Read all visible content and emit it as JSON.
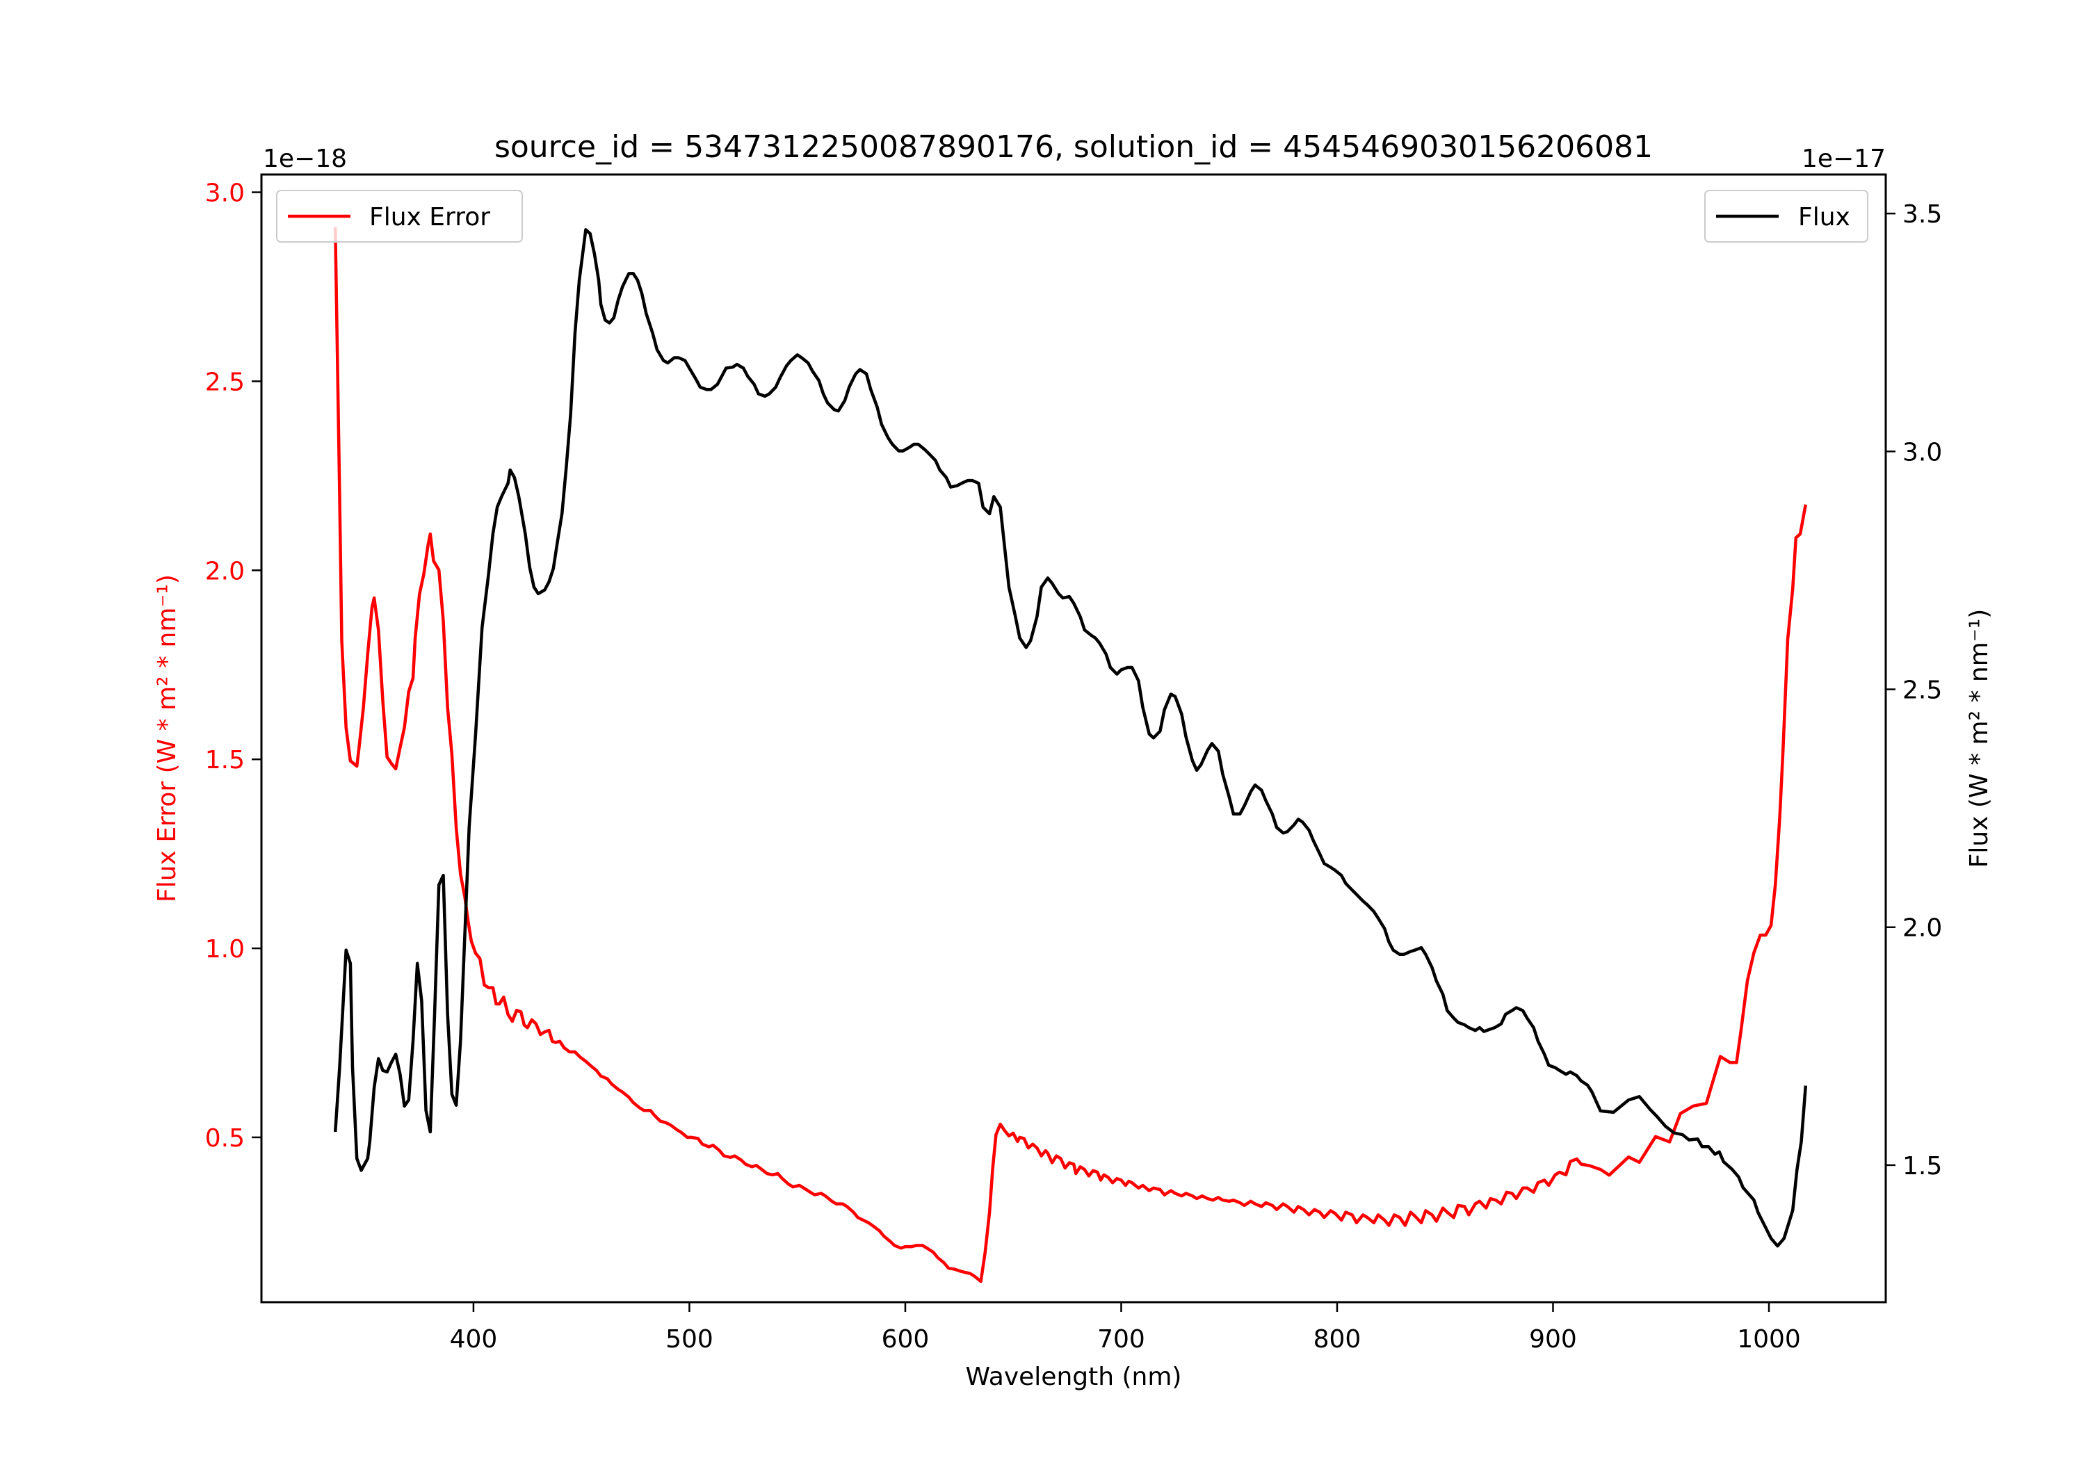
{
  "chart_data": {
    "type": "line",
    "title": "source_id = 5347312250087890176, solution_id = 4545469030156206081",
    "xlabel": "Wavelength (nm)",
    "ylabel_left": "Flux Error (W * m² * nm⁻¹)",
    "ylabel_right": "Flux (W * m² * nm⁻¹)",
    "offset_left": "1e−18",
    "offset_right": "1e−17",
    "xlim": [
      301.8,
      1054.1
    ],
    "ylim_left": [
      0.064,
      3.047
    ],
    "ylim_right": [
      1.212,
      3.582
    ],
    "xticks": [
      400,
      500,
      600,
      700,
      800,
      900,
      1000
    ],
    "xtick_labels": [
      "400",
      "500",
      "600",
      "700",
      "800",
      "900",
      "1000"
    ],
    "yticks_left": [
      0.5,
      1.0,
      1.5,
      2.0,
      2.5,
      3.0
    ],
    "ytick_labels_left": [
      "0.5",
      "1.0",
      "1.5",
      "2.0",
      "2.5",
      "3.0"
    ],
    "yticks_right": [
      1.5,
      2.0,
      2.5,
      3.0,
      3.5
    ],
    "ytick_labels_right": [
      "1.5",
      "2.0",
      "2.5",
      "3.0",
      "3.5"
    ],
    "grid": false,
    "legend_left": {
      "label": "Flux Error",
      "placement": "upper-left"
    },
    "legend_right": {
      "label": "Flux",
      "placement": "upper-right"
    },
    "colors": {
      "flux_error": "#ff0000",
      "flux": "#000000",
      "left_axis": "#ff0000"
    },
    "series": [
      {
        "name": "Flux Error",
        "axis": "left",
        "unit_scale": "1e-18",
        "x": [
          336,
          338,
          339,
          341,
          343,
          346,
          347,
          349,
          351,
          353,
          354,
          356,
          358,
          360,
          362,
          364,
          366,
          368,
          370,
          372,
          373,
          375,
          377,
          379,
          380,
          381.5,
          384,
          386,
          388,
          390,
          392,
          394,
          396,
          397.5,
          399,
          401,
          403,
          405,
          407,
          409,
          410.5,
          412,
          414,
          416,
          418,
          420,
          422,
          423.5,
          425,
          427,
          429,
          431,
          433,
          435,
          436.5,
          438,
          440,
          442,
          444.5,
          447,
          449.5,
          452,
          454,
          457,
          459,
          462,
          464,
          467,
          469,
          472,
          474,
          477,
          479,
          482,
          484,
          486.5,
          489,
          491.5,
          494,
          496,
          499,
          501,
          504,
          506,
          509,
          511,
          514,
          516,
          519,
          521,
          524,
          526,
          529,
          531,
          533.5,
          536,
          538.5,
          541,
          543,
          546,
          548,
          551,
          553,
          556,
          558,
          561,
          563,
          566,
          568,
          571,
          573,
          576,
          578,
          580.5,
          583,
          585.5,
          588,
          590,
          593,
          595,
          598,
          600,
          603,
          605,
          608,
          610,
          613,
          615,
          618,
          620,
          623,
          625,
          627.5,
          630,
          632,
          635,
          637,
          639,
          640.5,
          642,
          644,
          646,
          648,
          650,
          652,
          653,
          655,
          657,
          659,
          661,
          663,
          665,
          666,
          668,
          670,
          672,
          674,
          676,
          678,
          679,
          681,
          683,
          685,
          687,
          689,
          690.5,
          692,
          694,
          696,
          698,
          700,
          702,
          703.5,
          705,
          708,
          710,
          713,
          715,
          718,
          720,
          723,
          725,
          728,
          730,
          733,
          735,
          737.5,
          740,
          742.5,
          745,
          747,
          750,
          752,
          755,
          757,
          760,
          762,
          765,
          767,
          770,
          772,
          775,
          777,
          780,
          782,
          784.5,
          787,
          789.5,
          792,
          794,
          797,
          799,
          802,
          804,
          807,
          809,
          812,
          814,
          817,
          819,
          822,
          824,
          826.5,
          829,
          831.5,
          834,
          836,
          839,
          841,
          844,
          846,
          849,
          851,
          854,
          856,
          859,
          861,
          864,
          866,
          869,
          871,
          873.5,
          876,
          878.5,
          881,
          883,
          886,
          888,
          891,
          893,
          896,
          898,
          901,
          903,
          906,
          908,
          911,
          913,
          917,
          922,
          926,
          935,
          940,
          947.5,
          954,
          959,
          965,
          971,
          977.5,
          982,
          985,
          987,
          990,
          993,
          996,
          998.5,
          1001,
          1003,
          1005,
          1006.5,
          1008.7,
          1011,
          1012.5,
          1014.5,
          1017
        ],
        "y": [
          2.908,
          2.202,
          1.814,
          1.584,
          1.496,
          1.482,
          1.531,
          1.637,
          1.778,
          1.902,
          1.927,
          1.842,
          1.655,
          1.506,
          1.489,
          1.475,
          1.531,
          1.584,
          1.679,
          1.715,
          1.821,
          1.937,
          1.99,
          2.068,
          2.096,
          2.025,
          2.001,
          1.867,
          1.637,
          1.513,
          1.319,
          1.196,
          1.136,
          1.072,
          1.019,
          0.987,
          0.973,
          0.903,
          0.896,
          0.896,
          0.853,
          0.853,
          0.871,
          0.825,
          0.807,
          0.836,
          0.832,
          0.797,
          0.79,
          0.811,
          0.8,
          0.772,
          0.779,
          0.783,
          0.754,
          0.751,
          0.754,
          0.737,
          0.726,
          0.726,
          0.712,
          0.701,
          0.691,
          0.677,
          0.662,
          0.655,
          0.641,
          0.627,
          0.62,
          0.606,
          0.592,
          0.578,
          0.571,
          0.571,
          0.557,
          0.543,
          0.539,
          0.532,
          0.521,
          0.514,
          0.5,
          0.5,
          0.497,
          0.482,
          0.475,
          0.479,
          0.465,
          0.451,
          0.447,
          0.451,
          0.44,
          0.429,
          0.422,
          0.426,
          0.415,
          0.404,
          0.401,
          0.404,
          0.391,
          0.376,
          0.369,
          0.373,
          0.366,
          0.355,
          0.348,
          0.352,
          0.345,
          0.331,
          0.324,
          0.324,
          0.317,
          0.302,
          0.288,
          0.281,
          0.274,
          0.264,
          0.253,
          0.239,
          0.225,
          0.214,
          0.207,
          0.211,
          0.211,
          0.214,
          0.214,
          0.207,
          0.196,
          0.182,
          0.168,
          0.154,
          0.151,
          0.147,
          0.143,
          0.14,
          0.133,
          0.119,
          0.196,
          0.302,
          0.419,
          0.507,
          0.535,
          0.518,
          0.504,
          0.511,
          0.489,
          0.5,
          0.497,
          0.472,
          0.482,
          0.472,
          0.451,
          0.465,
          0.458,
          0.433,
          0.451,
          0.444,
          0.419,
          0.433,
          0.429,
          0.404,
          0.422,
          0.415,
          0.398,
          0.412,
          0.408,
          0.387,
          0.401,
          0.394,
          0.38,
          0.391,
          0.387,
          0.373,
          0.384,
          0.38,
          0.366,
          0.373,
          0.359,
          0.366,
          0.362,
          0.348,
          0.359,
          0.352,
          0.345,
          0.352,
          0.345,
          0.338,
          0.345,
          0.338,
          0.334,
          0.341,
          0.334,
          0.331,
          0.334,
          0.327,
          0.32,
          0.331,
          0.324,
          0.317,
          0.327,
          0.32,
          0.309,
          0.324,
          0.317,
          0.302,
          0.317,
          0.309,
          0.295,
          0.309,
          0.302,
          0.288,
          0.306,
          0.299,
          0.281,
          0.302,
          0.295,
          0.274,
          0.295,
          0.288,
          0.274,
          0.295,
          0.281,
          0.267,
          0.295,
          0.288,
          0.267,
          0.302,
          0.292,
          0.274,
          0.306,
          0.295,
          0.278,
          0.313,
          0.302,
          0.288,
          0.32,
          0.317,
          0.295,
          0.324,
          0.331,
          0.313,
          0.338,
          0.334,
          0.324,
          0.355,
          0.352,
          0.338,
          0.366,
          0.366,
          0.355,
          0.38,
          0.387,
          0.373,
          0.401,
          0.408,
          0.401,
          0.436,
          0.443,
          0.429,
          0.425,
          0.415,
          0.4,
          0.448,
          0.434,
          0.502,
          0.488,
          0.563,
          0.583,
          0.59,
          0.714,
          0.698,
          0.698,
          0.779,
          0.914,
          0.988,
          1.035,
          1.035,
          1.061,
          1.17,
          1.345,
          1.521,
          1.817,
          1.951,
          2.086,
          2.096,
          2.174
        ]
      },
      {
        "name": "Flux",
        "axis": "right",
        "unit_scale": "1e-17",
        "x": [
          336,
          338,
          341,
          343,
          344,
          346,
          348,
          351,
          352,
          354,
          356,
          358,
          360,
          362,
          364,
          366,
          368,
          370,
          372,
          374,
          376,
          378,
          380,
          382,
          384,
          386,
          388,
          390,
          392,
          394,
          396,
          398,
          401,
          404,
          407,
          409,
          411,
          413,
          416,
          417,
          419,
          421,
          424,
          426,
          428,
          430,
          433,
          435,
          437,
          439,
          441,
          443,
          445,
          447,
          449,
          451,
          452,
          454,
          456,
          458,
          459,
          461,
          463,
          465,
          467,
          469,
          471,
          472,
          474,
          476,
          478,
          480,
          483,
          485,
          488,
          490,
          493,
          495,
          498,
          500,
          503,
          505,
          508,
          510,
          513,
          515,
          517,
          520,
          522,
          525,
          527,
          530,
          532,
          535,
          537,
          540,
          542,
          545,
          547,
          550,
          552,
          555,
          557,
          560,
          562,
          564,
          567,
          569,
          572,
          574,
          577,
          579,
          582,
          584,
          587,
          589,
          592,
          594,
          597,
          599,
          602,
          604,
          606,
          609,
          611,
          614,
          616,
          619,
          621,
          624,
          626,
          629,
          631,
          634,
          636,
          639,
          641,
          644,
          646,
          648,
          651,
          653,
          656,
          658,
          661,
          663,
          666,
          668,
          671,
          673,
          676,
          678,
          681,
          683,
          686,
          688,
          690,
          693,
          695,
          698,
          700,
          703,
          705,
          708,
          710,
          713,
          715,
          718,
          720,
          723,
          725,
          728,
          730,
          733,
          735,
          737,
          740,
          742,
          745,
          747,
          750,
          752,
          755,
          757,
          760,
          762,
          765,
          767,
          770,
          772,
          775,
          777,
          780,
          782,
          784,
          787,
          789,
          792,
          794,
          797,
          799,
          802,
          804,
          807,
          809,
          812,
          814,
          817,
          819,
          822,
          824,
          826,
          829,
          831,
          834,
          836,
          839,
          841,
          844,
          846,
          849,
          851,
          854,
          856,
          859,
          861,
          864,
          866,
          868,
          871,
          873,
          876,
          878,
          881,
          883,
          886,
          888,
          891,
          893,
          896,
          898,
          901,
          903,
          906,
          908,
          911,
          913,
          916,
          918,
          922,
          928,
          935,
          940,
          945,
          948,
          952,
          956,
          960,
          963,
          967,
          969,
          972,
          975,
          977,
          979,
          983,
          986,
          988,
          993,
          995,
          998,
          1001,
          1004,
          1007,
          1011,
          1013,
          1015,
          1017
        ],
        "y": [
          1.57,
          1.705,
          1.952,
          1.924,
          1.705,
          1.514,
          1.489,
          1.514,
          1.551,
          1.663,
          1.724,
          1.699,
          1.696,
          1.716,
          1.733,
          1.691,
          1.624,
          1.637,
          1.761,
          1.924,
          1.845,
          1.615,
          1.57,
          1.817,
          2.089,
          2.109,
          1.817,
          1.649,
          1.626,
          1.761,
          1.985,
          2.21,
          2.406,
          2.63,
          2.743,
          2.827,
          2.883,
          2.905,
          2.933,
          2.961,
          2.945,
          2.905,
          2.827,
          2.757,
          2.715,
          2.701,
          2.709,
          2.726,
          2.754,
          2.813,
          2.869,
          2.967,
          3.079,
          3.248,
          3.36,
          3.43,
          3.466,
          3.458,
          3.416,
          3.36,
          3.309,
          3.276,
          3.27,
          3.281,
          3.318,
          3.346,
          3.365,
          3.374,
          3.374,
          3.36,
          3.332,
          3.29,
          3.248,
          3.214,
          3.191,
          3.186,
          3.197,
          3.197,
          3.191,
          3.175,
          3.152,
          3.135,
          3.13,
          3.13,
          3.141,
          3.158,
          3.175,
          3.177,
          3.183,
          3.175,
          3.158,
          3.141,
          3.121,
          3.116,
          3.121,
          3.135,
          3.155,
          3.18,
          3.191,
          3.203,
          3.197,
          3.186,
          3.169,
          3.149,
          3.121,
          3.102,
          3.088,
          3.085,
          3.107,
          3.135,
          3.163,
          3.172,
          3.163,
          3.13,
          3.093,
          3.057,
          3.029,
          3.015,
          3.001,
          3.001,
          3.009,
          3.015,
          3.015,
          3.004,
          2.995,
          2.981,
          2.961,
          2.945,
          2.925,
          2.928,
          2.933,
          2.939,
          2.939,
          2.933,
          2.883,
          2.869,
          2.905,
          2.883,
          2.799,
          2.715,
          2.653,
          2.608,
          2.588,
          2.602,
          2.653,
          2.715,
          2.734,
          2.723,
          2.701,
          2.692,
          2.695,
          2.681,
          2.653,
          2.625,
          2.614,
          2.608,
          2.597,
          2.574,
          2.546,
          2.532,
          2.541,
          2.546,
          2.546,
          2.518,
          2.462,
          2.406,
          2.398,
          2.412,
          2.457,
          2.49,
          2.485,
          2.448,
          2.4,
          2.35,
          2.33,
          2.342,
          2.372,
          2.386,
          2.37,
          2.322,
          2.274,
          2.238,
          2.238,
          2.255,
          2.285,
          2.299,
          2.288,
          2.266,
          2.238,
          2.21,
          2.198,
          2.201,
          2.215,
          2.227,
          2.221,
          2.204,
          2.182,
          2.154,
          2.134,
          2.126,
          2.12,
          2.109,
          2.092,
          2.078,
          2.069,
          2.055,
          2.047,
          2.033,
          2.019,
          1.997,
          1.969,
          1.952,
          1.943,
          1.943,
          1.949,
          1.952,
          1.957,
          1.943,
          1.915,
          1.887,
          1.859,
          1.825,
          1.809,
          1.8,
          1.795,
          1.789,
          1.783,
          1.789,
          1.781,
          1.786,
          1.789,
          1.797,
          1.817,
          1.825,
          1.831,
          1.825,
          1.809,
          1.789,
          1.761,
          1.733,
          1.71,
          1.705,
          1.699,
          1.691,
          1.696,
          1.688,
          1.677,
          1.668,
          1.654,
          1.614,
          1.611,
          1.637,
          1.644,
          1.617,
          1.603,
          1.582,
          1.568,
          1.564,
          1.553,
          1.555,
          1.539,
          1.539,
          1.523,
          1.528,
          1.507,
          1.491,
          1.475,
          1.453,
          1.427,
          1.4,
          1.373,
          1.346,
          1.33,
          1.346,
          1.405,
          1.491,
          1.55,
          1.667
        ]
      }
    ]
  }
}
